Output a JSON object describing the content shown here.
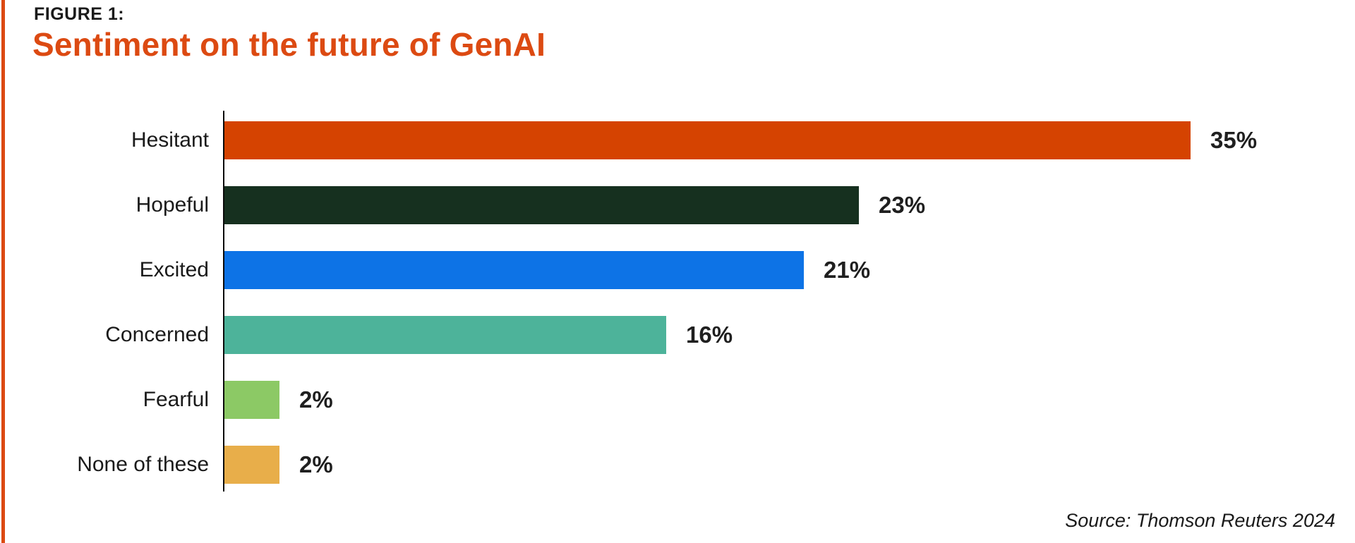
{
  "figure_label": "FIGURE 1:",
  "title": "Sentiment on the future of GenAI",
  "source": "Source: Thomson Reuters 2024",
  "colors": {
    "accent_orange": "#dc4a12",
    "text": "#1a1a1a",
    "axis": "#0a0a0a"
  },
  "chart_data": {
    "type": "bar",
    "orientation": "horizontal",
    "title": "Sentiment on the future of GenAI",
    "xlabel": "",
    "ylabel": "",
    "categories": [
      "Hesitant",
      "Hopeful",
      "Excited",
      "Concerned",
      "Fearful",
      "None of these"
    ],
    "values": [
      35,
      23,
      21,
      16,
      2,
      2
    ],
    "value_labels": [
      "35%",
      "23%",
      "21%",
      "16%",
      "2%",
      "2%"
    ],
    "bar_colors": [
      "#d54301",
      "#16301f",
      "#0d73e6",
      "#4db39a",
      "#8cc965",
      "#e8ae4a"
    ],
    "xlim": [
      0,
      41
    ],
    "grid": false,
    "legend": "none",
    "value_label_position": "end-of-bar",
    "source": "Source: Thomson Reuters 2024"
  }
}
